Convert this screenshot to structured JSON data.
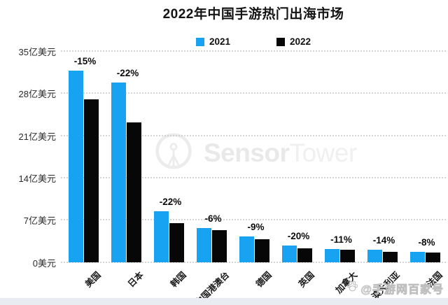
{
  "chart_data": {
    "type": "bar",
    "title": "2022年中国手游热门出海市场",
    "categories": [
      "美国",
      "日本",
      "韩国",
      "中国港澳台",
      "德国",
      "英国",
      "加拿大",
      "澳大利亚",
      "法国"
    ],
    "series": [
      {
        "name": "2021",
        "color": "#18a2f2",
        "values": [
          31.8,
          29.8,
          8.4,
          5.6,
          4.2,
          2.8,
          2.2,
          2.0,
          1.7
        ]
      },
      {
        "name": "2022",
        "color": "#070707",
        "values": [
          27.0,
          23.2,
          6.5,
          5.3,
          3.8,
          2.3,
          2.0,
          1.7,
          1.6
        ]
      }
    ],
    "pct_change_labels": [
      "-15%",
      "-22%",
      "-22%",
      "-6%",
      "-9%",
      "-20%",
      "-11%",
      "-14%",
      "-8%"
    ],
    "y_ticks": [
      {
        "value": 35,
        "label": "35亿美元"
      },
      {
        "value": 28,
        "label": "28亿美元"
      },
      {
        "value": 21,
        "label": "21亿美元"
      },
      {
        "value": 14,
        "label": "14亿美元"
      },
      {
        "value": 7,
        "label": "7亿美元"
      },
      {
        "value": 0,
        "label": "0美元"
      }
    ],
    "ylim": [
      0,
      35
    ],
    "y_unit": "亿美元",
    "grid": "horizontal-dotted",
    "legend_position": "top-center"
  },
  "watermarks": {
    "center_bold": "Sensor",
    "center_light": "Tower",
    "bottom_right": "@手游网百家号"
  }
}
